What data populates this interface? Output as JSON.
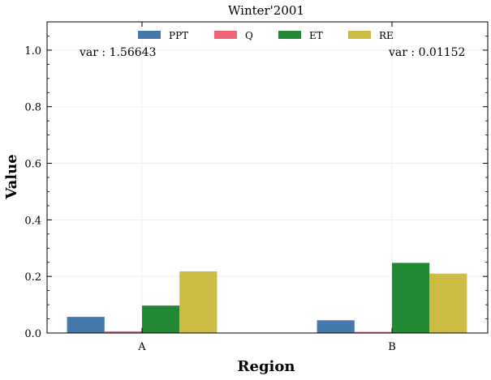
{
  "chart_data": {
    "type": "bar",
    "title": "Winter'2001",
    "xlabel": "Region",
    "ylabel": "Value",
    "categories": [
      "A",
      "B"
    ],
    "ylim": [
      0,
      1.1
    ],
    "yticks": [
      "0.0",
      "0.2",
      "0.4",
      "0.6",
      "0.8",
      "1.0"
    ],
    "grid": true,
    "legend_position": "top-center",
    "series": [
      {
        "name": "PPT",
        "color": "#4477aa",
        "values": [
          0.057,
          0.045
        ]
      },
      {
        "name": "Q",
        "color": "#ee6677",
        "values": [
          0.006,
          0.004
        ]
      },
      {
        "name": "ET",
        "color": "#228833",
        "values": [
          0.097,
          0.248
        ]
      },
      {
        "name": "RE",
        "color": "#ccbb44",
        "values": [
          0.218,
          0.21
        ]
      }
    ],
    "annotations": [
      "var : 1.56643",
      "var : 0.01152"
    ]
  }
}
